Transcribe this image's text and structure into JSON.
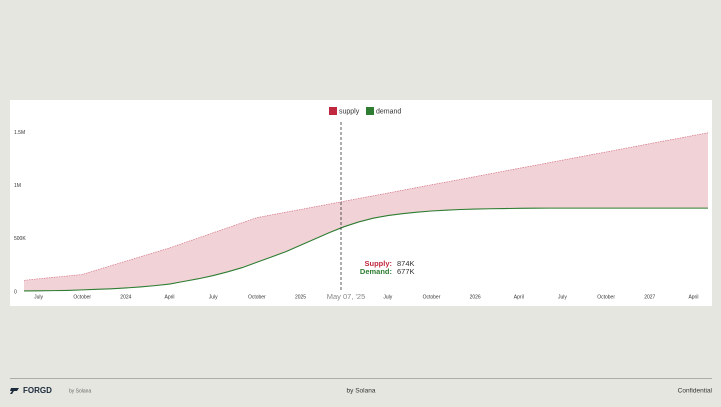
{
  "chart_data": {
    "type": "area_band",
    "x": [
      "2023-06",
      "2023-07",
      "2023-08",
      "2023-09",
      "2023-10",
      "2023-11",
      "2023-12",
      "2024-01",
      "2024-02",
      "2024-03",
      "2024-04",
      "2024-05",
      "2024-06",
      "2024-07",
      "2024-08",
      "2024-09",
      "2024-10",
      "2024-11",
      "2024-12",
      "2025-01",
      "2025-02",
      "2025-03",
      "2025-04",
      "2025-05",
      "2025-06",
      "2025-07",
      "2025-08",
      "2025-09",
      "2025-10",
      "2025-11",
      "2025-12",
      "2026-01",
      "2026-02",
      "2026-03",
      "2026-04",
      "2026-05",
      "2026-06",
      "2026-07",
      "2026-08",
      "2026-09",
      "2026-10",
      "2026-11",
      "2026-12",
      "2027-01",
      "2027-02",
      "2027-03",
      "2027-04",
      "2027-05"
    ],
    "series": [
      {
        "name": "supply",
        "color": "#c0283f",
        "values": [
          110000,
          124000,
          138000,
          151000,
          165000,
          207000,
          249000,
          290000,
          332000,
          373000,
          415000,
          463000,
          510000,
          558000,
          605000,
          653000,
          700000,
          726000,
          752000,
          777000,
          803000,
          829000,
          855000,
          881000,
          906000,
          932000,
          958000,
          984000,
          1010000,
          1035000,
          1061000,
          1087000,
          1113000,
          1139000,
          1165000,
          1190000,
          1216000,
          1242000,
          1268000,
          1294000,
          1319000,
          1345000,
          1371000,
          1397000,
          1423000,
          1448000,
          1474000,
          1500000
        ]
      },
      {
        "name": "demand",
        "color": "#2e7d32",
        "values": [
          10000,
          11000,
          13000,
          15000,
          20000,
          25000,
          30000,
          38000,
          48000,
          60000,
          75000,
          100000,
          125000,
          155000,
          190000,
          230000,
          280000,
          330000,
          380000,
          440000,
          500000,
          560000,
          615000,
          660000,
          695000,
          720000,
          738000,
          752000,
          763000,
          771000,
          777000,
          781000,
          784000,
          786000,
          788000,
          789000,
          790000,
          790000,
          790000,
          790000,
          790000,
          790000,
          790000,
          790000,
          790000,
          790000,
          790000,
          790000
        ]
      }
    ],
    "xlim": [
      "2023-06",
      "2027-05"
    ],
    "xticks": [
      {
        "value": "2023-07",
        "label": "July"
      },
      {
        "value": "2023-10",
        "label": "October"
      },
      {
        "value": "2024-01",
        "label": "2024"
      },
      {
        "value": "2024-04",
        "label": "April"
      },
      {
        "value": "2024-07",
        "label": "July"
      },
      {
        "value": "2024-10",
        "label": "October"
      },
      {
        "value": "2025-01",
        "label": "2025"
      },
      {
        "value": "2025-07",
        "label": "July"
      },
      {
        "value": "2025-10",
        "label": "October"
      },
      {
        "value": "2026-01",
        "label": "2026"
      },
      {
        "value": "2026-04",
        "label": "April"
      },
      {
        "value": "2026-07",
        "label": "July"
      },
      {
        "value": "2026-10",
        "label": "October"
      },
      {
        "value": "2027-01",
        "label": "2027"
      },
      {
        "value": "2027-04",
        "label": "April"
      }
    ],
    "ylim": [
      0,
      1620000
    ],
    "yticks": [
      0,
      {
        "value": 500000,
        "label": "500K"
      },
      {
        "value": 1000000,
        "label": "1M"
      },
      {
        "value": 1500000,
        "label": "1.5M"
      }
    ],
    "tooltip": {
      "date": "May 07, '25",
      "labels": [
        "Supply:",
        "Demand:"
      ],
      "values": [
        874000,
        677000
      ],
      "value_labels": [
        "874K",
        "677K"
      ]
    }
  },
  "footer": {
    "brand": "FORGD",
    "brand_sub": "by Solana",
    "center": "by Solana",
    "right": "Confidential"
  }
}
